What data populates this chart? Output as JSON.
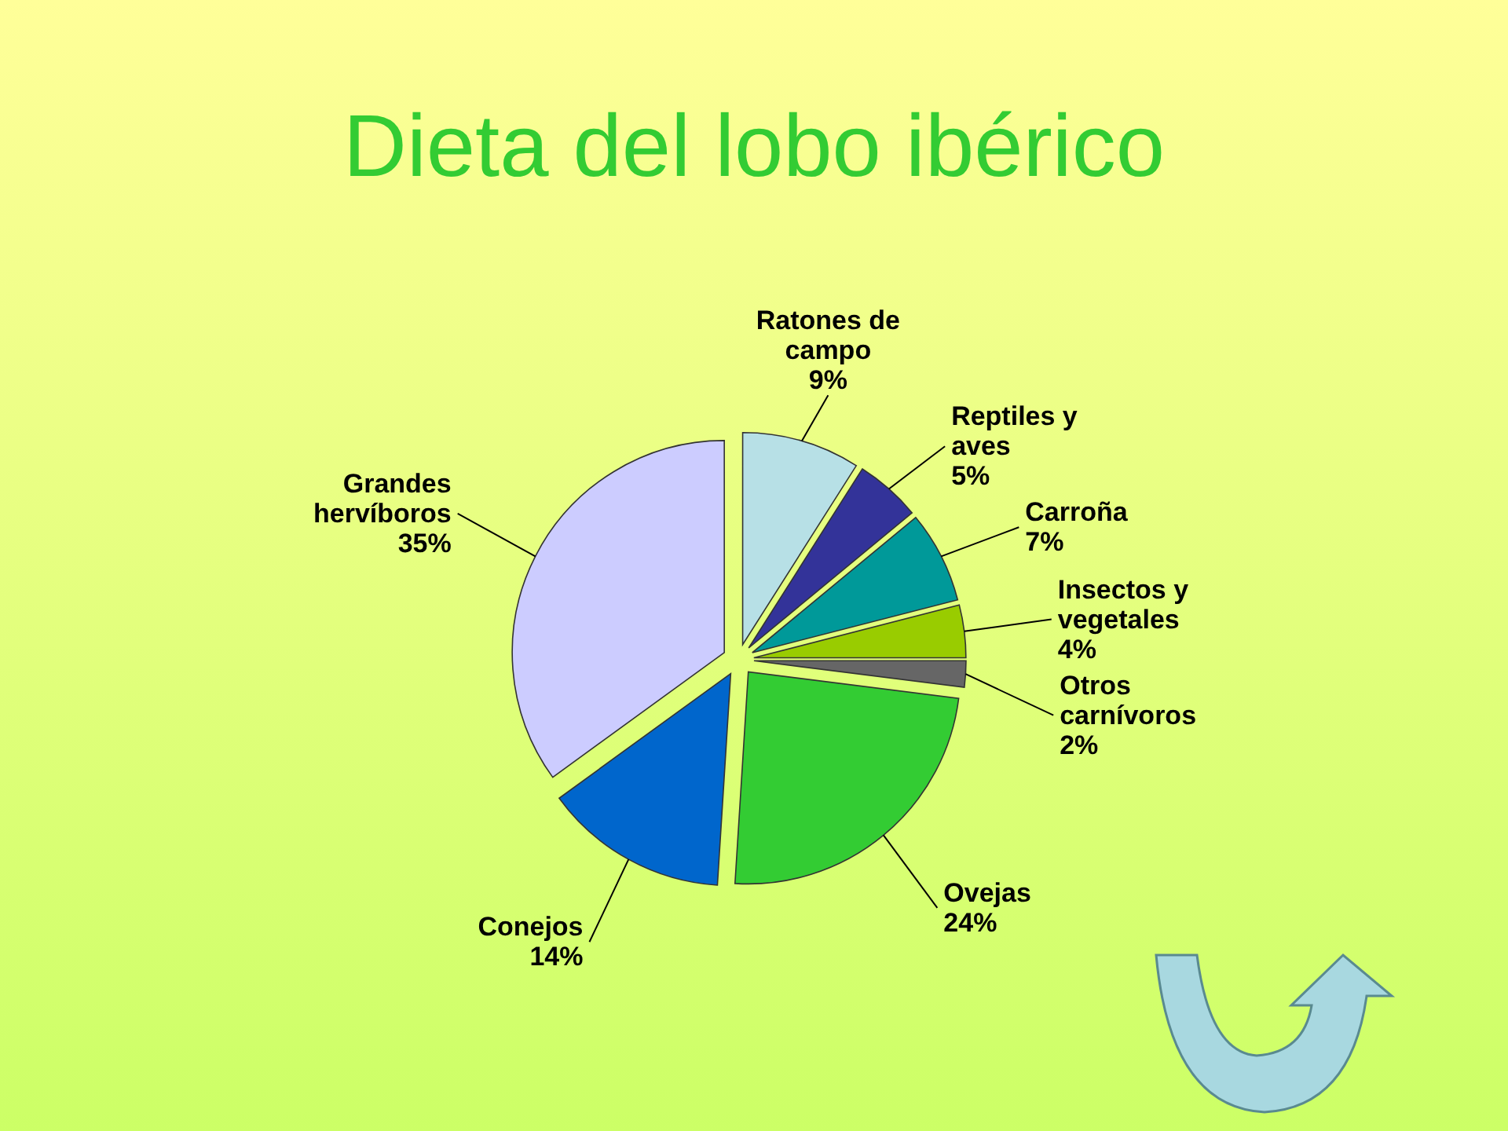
{
  "chart_data": {
    "type": "pie",
    "title": "Dieta del lobo ibérico",
    "categories": [
      "Ratones de campo",
      "Reptiles y aves",
      "Carroña",
      "Insectos y vegetales",
      "Otros carnívoros",
      "Ovejas",
      "Conejos",
      "Grandes hervíboros"
    ],
    "values": [
      9,
      5,
      7,
      4,
      2,
      24,
      14,
      35
    ],
    "colors": [
      "#b7e0e6",
      "#333399",
      "#009999",
      "#99cc00",
      "#666666",
      "#33cc33",
      "#0066cc",
      "#ccccff"
    ],
    "value_labels": [
      "9%",
      "5%",
      "7%",
      "4%",
      "2%",
      "24%",
      "14%",
      "35%"
    ]
  }
}
